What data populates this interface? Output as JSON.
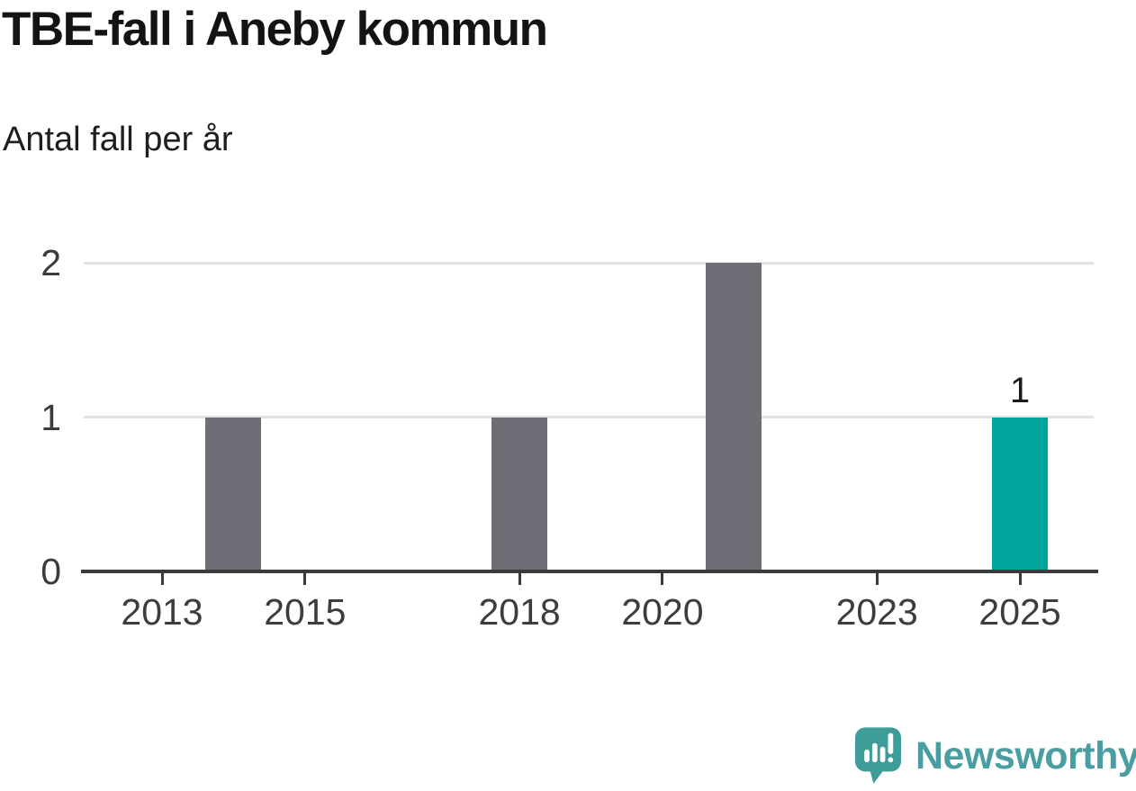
{
  "header": {
    "title": "TBE-fall i Aneby kommun",
    "subtitle": "Antal fall per år"
  },
  "chart_data": {
    "type": "bar",
    "title": "TBE-fall i Aneby kommun",
    "subtitle": "Antal fall per år",
    "x": [
      2013,
      2014,
      2015,
      2016,
      2017,
      2018,
      2019,
      2020,
      2021,
      2022,
      2023,
      2024,
      2025
    ],
    "values": [
      0,
      1,
      0,
      0,
      0,
      1,
      0,
      0,
      2,
      0,
      0,
      0,
      1
    ],
    "x_tick_labels": [
      "2013",
      "2015",
      "2018",
      "2020",
      "2023",
      "2025"
    ],
    "x_tick_years": [
      2013,
      2015,
      2018,
      2020,
      2023,
      2025
    ],
    "y_ticks": [
      0,
      1,
      2
    ],
    "ylim": [
      0,
      2
    ],
    "grid": "horizontal",
    "legend": "none",
    "highlight_year": 2025,
    "annotations": [
      {
        "year": 2025,
        "text": "1"
      }
    ],
    "colors": {
      "bar_default": "#6f6d75",
      "bar_highlight": "#00a49a",
      "gridline": "#e2e2e2",
      "axis": "#3a3a3c",
      "tick_label": "#3d3d3d"
    }
  },
  "logo": {
    "text": "Newsworthy",
    "icon": "newsworthy-speech-bubble-chart-icon",
    "bubble_color": "#3e9d98",
    "text_color": "#4a9da0"
  }
}
